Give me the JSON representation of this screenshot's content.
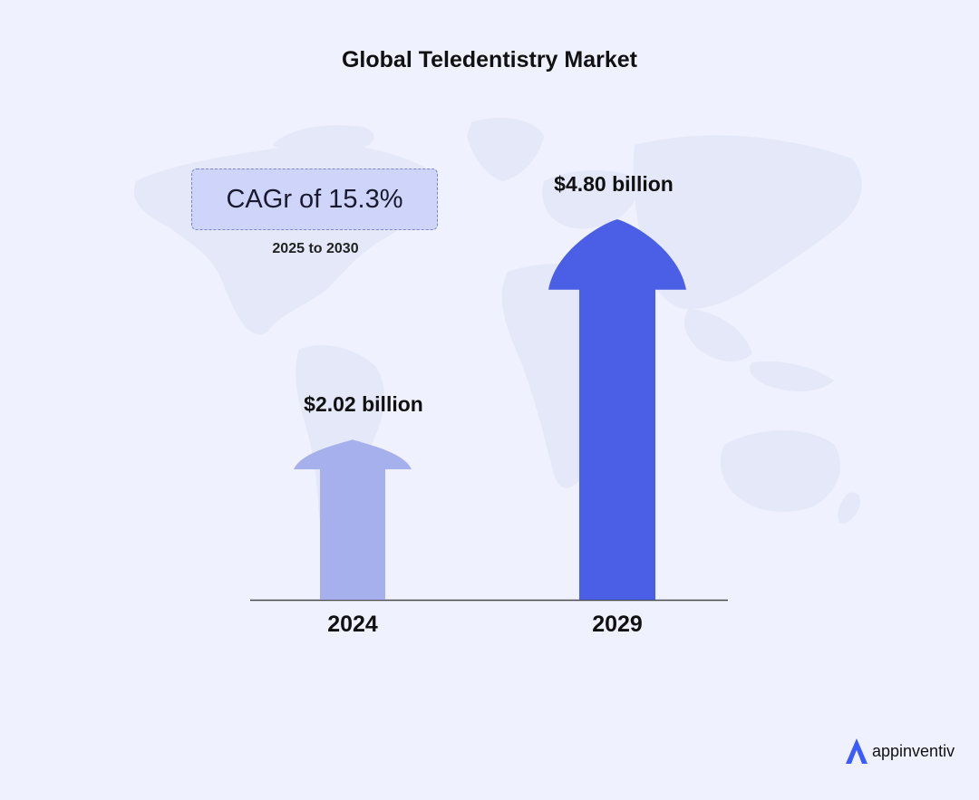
{
  "chart_data": {
    "type": "bar",
    "title": "Global Teledentistry Market",
    "categories": [
      "2024",
      "2029"
    ],
    "values": [
      2.02,
      4.8
    ],
    "value_labels": [
      "$2.02 billion",
      "$4.80 billion"
    ],
    "bar_colors": [
      "#a6b0ec",
      "#4b5fe6"
    ],
    "annotation": {
      "text": "CAGr of 15.3%",
      "subtext": "2025 to 2030"
    },
    "xlabel": "",
    "ylabel": "",
    "grid": false,
    "legend": "none"
  },
  "brand": {
    "name": "appinventiv",
    "color": "#3b5bfa"
  },
  "background": {
    "color": "#eff2fe",
    "map_color": "#e3e7f6"
  }
}
